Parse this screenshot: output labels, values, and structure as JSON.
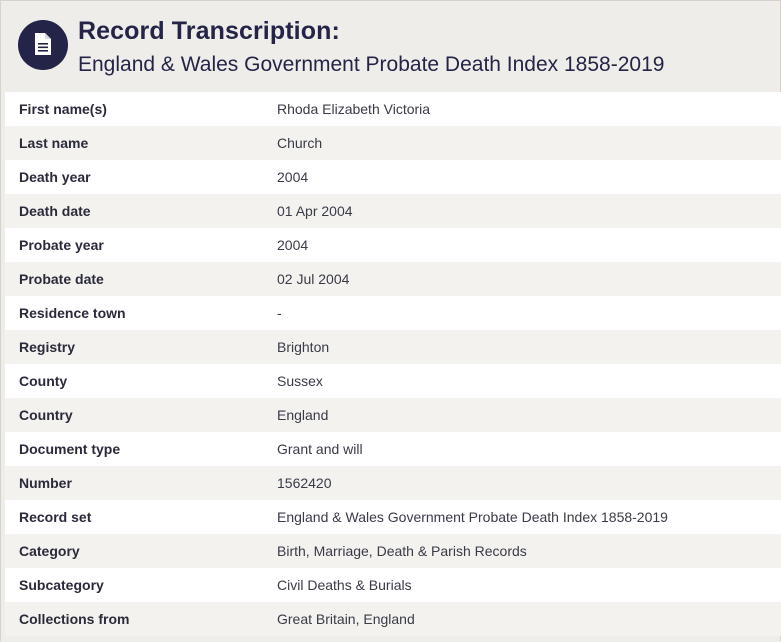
{
  "header": {
    "icon": "document-icon",
    "title": "Record Transcription:",
    "subtitle": "England & Wales Government Probate Death Index 1858-2019"
  },
  "colors": {
    "badge": "#232447",
    "title": "#232447",
    "row_white": "#ffffff",
    "row_shaded": "#f3f2ee"
  },
  "rows": [
    {
      "label": "First name(s)",
      "value": "Rhoda Elizabeth Victoria"
    },
    {
      "label": "Last name",
      "value": "Church"
    },
    {
      "label": "Death year",
      "value": "2004"
    },
    {
      "label": "Death date",
      "value": "01 Apr 2004"
    },
    {
      "label": "Probate year",
      "value": "2004"
    },
    {
      "label": "Probate date",
      "value": "02 Jul 2004"
    },
    {
      "label": "Residence town",
      "value": "-"
    },
    {
      "label": "Registry",
      "value": "Brighton"
    },
    {
      "label": "County",
      "value": "Sussex"
    },
    {
      "label": "Country",
      "value": "England"
    },
    {
      "label": "Document type",
      "value": "Grant and will"
    },
    {
      "label": "Number",
      "value": "1562420"
    },
    {
      "label": "Record set",
      "value": "England & Wales Government Probate Death Index 1858-2019"
    },
    {
      "label": "Category",
      "value": "Birth, Marriage, Death & Parish Records"
    },
    {
      "label": "Subcategory",
      "value": "Civil Deaths & Burials"
    },
    {
      "label": "Collections from",
      "value": "Great Britain, England"
    }
  ]
}
